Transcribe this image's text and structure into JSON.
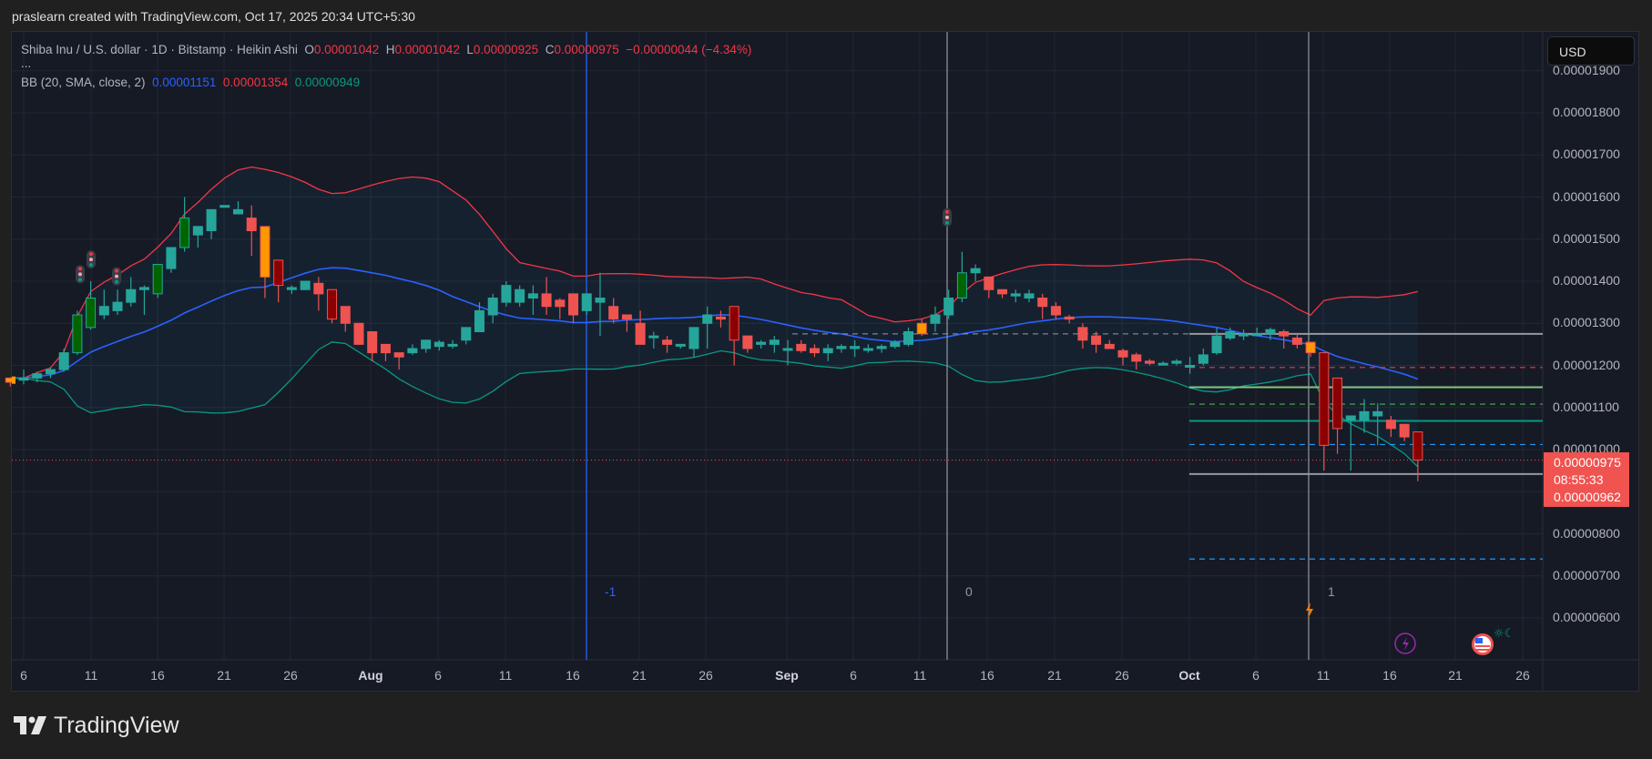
{
  "credit": "praslearn created with TradingView.com, Oct 17, 2025 20:34 UTC+5:30",
  "legend": {
    "symbol": "Shiba Inu / U.S. dollar · 1D · Bitstamp · Heikin Ashi",
    "o_label": "O",
    "o_value": "0.00001042",
    "h_label": "H",
    "h_value": "0.00001042",
    "l_label": "L",
    "l_value": "0.00000925",
    "c_label": "C",
    "c_value": "0.00000975",
    "change": "−0.00000044 (−4.34%)",
    "more": "...",
    "bb_label": "BB (20, SMA, close, 2)",
    "bb_basis": "0.00001151",
    "bb_upper": "0.00001354",
    "bb_lower": "0.00000949"
  },
  "currency_button": "USD",
  "price_axis": [
    "0.00001900",
    "0.00001800",
    "0.00001700",
    "0.00001600",
    "0.00001500",
    "0.00001400",
    "0.00001300",
    "0.00001200",
    "0.00001100",
    "0.00001000",
    "0.00000800",
    "0.00000700",
    "0.00000600"
  ],
  "last_price": {
    "price": "0.00000975",
    "countdown": "08:55:33",
    "low": "0.00000962"
  },
  "time_axis": [
    {
      "label": "6",
      "bold": false
    },
    {
      "label": "11",
      "bold": false
    },
    {
      "label": "16",
      "bold": false
    },
    {
      "label": "21",
      "bold": false
    },
    {
      "label": "26",
      "bold": false
    },
    {
      "label": "Aug",
      "bold": true
    },
    {
      "label": "6",
      "bold": false
    },
    {
      "label": "11",
      "bold": false
    },
    {
      "label": "16",
      "bold": false
    },
    {
      "label": "21",
      "bold": false
    },
    {
      "label": "26",
      "bold": false
    },
    {
      "label": "Sep",
      "bold": true
    },
    {
      "label": "6",
      "bold": false
    },
    {
      "label": "11",
      "bold": false
    },
    {
      "label": "16",
      "bold": false
    },
    {
      "label": "21",
      "bold": false
    },
    {
      "label": "26",
      "bold": false
    },
    {
      "label": "Oct",
      "bold": true
    },
    {
      "label": "6",
      "bold": false
    },
    {
      "label": "11",
      "bold": false
    },
    {
      "label": "16",
      "bold": false
    },
    {
      "label": "21",
      "bold": false
    },
    {
      "label": "26",
      "bold": false
    }
  ],
  "session_markers": [
    {
      "label": "-1",
      "color": "#2962ff"
    },
    {
      "label": "0",
      "color": "#9598a1"
    },
    {
      "label": "1",
      "color": "#9598a1"
    }
  ],
  "logo_text": "TradingView",
  "colors": {
    "up": "#26a69a",
    "up_strong": "#006400",
    "down": "#ef5350",
    "down_strong": "#8b0000",
    "neutral_orange": "#ff9800",
    "bb_upper": "#f23645",
    "bb_basis": "#2962ff",
    "bb_lower": "#089981",
    "background": "#161a25"
  },
  "chart_data": {
    "type": "candlestick",
    "title": "Shiba Inu / U.S. dollar · 1D · Bitstamp · Heikin Ashi",
    "xlabel": "",
    "ylabel": "USD",
    "ylim": [
      5.5e-06,
      1.95e-05
    ],
    "grid": true,
    "indicator": "Bollinger Bands (20, SMA, close, 2)",
    "x_start": "Jul 5 2025",
    "x_end": "Oct 17 2025",
    "last": {
      "open": 1.042e-05,
      "high": 1.042e-05,
      "low": 9.25e-06,
      "close": 9.75e-06,
      "change": -4.4e-07,
      "change_pct": -4.34
    },
    "bb_last": {
      "basis": 1.151e-05,
      "upper": 1.354e-05,
      "lower": 9.49e-06
    },
    "horizontal_levels": [
      1.275e-05,
      1.195e-05,
      1.148e-05,
      1.108e-05,
      1.068e-05,
      1.012e-05,
      9.42e-06,
      7.4e-06
    ],
    "candles_1e8": [
      [
        1160,
        1170,
        1150,
        1170
      ],
      [
        1165,
        1190,
        1155,
        1170
      ],
      [
        1170,
        1185,
        1160,
        1180
      ],
      [
        1180,
        1195,
        1170,
        1190
      ],
      [
        1190,
        1240,
        1185,
        1230
      ],
      [
        1230,
        1330,
        1225,
        1320
      ],
      [
        1290,
        1400,
        1285,
        1360
      ],
      [
        1320,
        1380,
        1310,
        1340
      ],
      [
        1330,
        1380,
        1320,
        1350
      ],
      [
        1350,
        1410,
        1340,
        1380
      ],
      [
        1380,
        1390,
        1320,
        1385
      ],
      [
        1370,
        1440,
        1360,
        1440
      ],
      [
        1430,
        1460,
        1420,
        1480
      ],
      [
        1480,
        1600,
        1470,
        1550
      ],
      [
        1510,
        1530,
        1480,
        1530
      ],
      [
        1520,
        1560,
        1500,
        1570
      ],
      [
        1580,
        1570,
        1580,
        1580
      ],
      [
        1560,
        1590,
        1570,
        1570
      ],
      [
        1550,
        1580,
        1460,
        1520
      ],
      [
        1530,
        1500,
        1360,
        1410
      ],
      [
        1450,
        1450,
        1350,
        1390
      ],
      [
        1380,
        1390,
        1370,
        1385
      ],
      [
        1380,
        1400,
        1380,
        1400
      ],
      [
        1395,
        1410,
        1330,
        1370
      ],
      [
        1380,
        1350,
        1300,
        1310
      ],
      [
        1340,
        1340,
        1280,
        1300
      ],
      [
        1300,
        1300,
        1250,
        1250
      ],
      [
        1280,
        1280,
        1210,
        1230
      ],
      [
        1250,
        1250,
        1210,
        1230
      ],
      [
        1230,
        1230,
        1190,
        1220
      ],
      [
        1230,
        1250,
        1225,
        1240
      ],
      [
        1240,
        1260,
        1230,
        1260
      ],
      [
        1245,
        1260,
        1235,
        1255
      ],
      [
        1250,
        1260,
        1240,
        1250
      ],
      [
        1260,
        1290,
        1250,
        1290
      ],
      [
        1280,
        1350,
        1280,
        1330
      ],
      [
        1320,
        1370,
        1300,
        1360
      ],
      [
        1350,
        1400,
        1340,
        1390
      ],
      [
        1350,
        1390,
        1340,
        1380
      ],
      [
        1360,
        1390,
        1320,
        1370
      ],
      [
        1370,
        1410,
        1320,
        1340
      ],
      [
        1355,
        1360,
        1310,
        1340
      ],
      [
        1370,
        1370,
        1300,
        1320
      ],
      [
        1330,
        1370,
        1320,
        1370
      ],
      [
        1350,
        1420,
        1270,
        1360
      ],
      [
        1340,
        1360,
        1300,
        1310
      ],
      [
        1320,
        1320,
        1280,
        1310
      ],
      [
        1300,
        1330,
        1250,
        1250
      ],
      [
        1270,
        1280,
        1240,
        1270
      ],
      [
        1260,
        1270,
        1230,
        1250
      ],
      [
        1250,
        1250,
        1240,
        1250
      ],
      [
        1240,
        1280,
        1220,
        1290
      ],
      [
        1300,
        1340,
        1240,
        1320
      ],
      [
        1315,
        1330,
        1290,
        1310
      ],
      [
        1340,
        1330,
        1200,
        1260
      ],
      [
        1270,
        1270,
        1230,
        1240
      ],
      [
        1250,
        1260,
        1240,
        1255
      ],
      [
        1250,
        1270,
        1230,
        1260
      ],
      [
        1240,
        1260,
        1200,
        1240
      ],
      [
        1250,
        1260,
        1230,
        1235
      ],
      [
        1240,
        1250,
        1220,
        1230
      ],
      [
        1230,
        1250,
        1210,
        1240
      ],
      [
        1240,
        1250,
        1230,
        1245
      ],
      [
        1240,
        1260,
        1220,
        1245
      ],
      [
        1240,
        1250,
        1230,
        1240
      ],
      [
        1240,
        1250,
        1230,
        1245
      ],
      [
        1245,
        1260,
        1240,
        1255
      ],
      [
        1250,
        1290,
        1245,
        1280
      ],
      [
        1275,
        1310,
        1270,
        1300
      ],
      [
        1300,
        1340,
        1280,
        1320
      ],
      [
        1320,
        1380,
        1310,
        1360
      ],
      [
        1360,
        1470,
        1350,
        1420
      ],
      [
        1420,
        1440,
        1400,
        1430
      ],
      [
        1410,
        1410,
        1360,
        1380
      ],
      [
        1380,
        1380,
        1360,
        1370
      ],
      [
        1365,
        1380,
        1350,
        1370
      ],
      [
        1360,
        1380,
        1350,
        1370
      ],
      [
        1360,
        1370,
        1310,
        1340
      ],
      [
        1340,
        1350,
        1310,
        1320
      ],
      [
        1315,
        1320,
        1300,
        1310
      ],
      [
        1290,
        1300,
        1240,
        1260
      ],
      [
        1270,
        1280,
        1230,
        1250
      ],
      [
        1250,
        1260,
        1240,
        1240
      ],
      [
        1235,
        1240,
        1200,
        1220
      ],
      [
        1225,
        1230,
        1190,
        1210
      ],
      [
        1210,
        1215,
        1200,
        1205
      ],
      [
        1205,
        1210,
        1200,
        1205
      ],
      [
        1205,
        1215,
        1200,
        1210
      ],
      [
        1200,
        1220,
        1180,
        1200
      ],
      [
        1205,
        1240,
        1200,
        1225
      ],
      [
        1230,
        1290,
        1225,
        1270
      ],
      [
        1265,
        1290,
        1260,
        1280
      ],
      [
        1270,
        1285,
        1260,
        1275
      ],
      [
        1275,
        1290,
        1270,
        1275
      ],
      [
        1275,
        1290,
        1260,
        1285
      ],
      [
        1280,
        1285,
        1240,
        1270
      ],
      [
        1265,
        1275,
        1240,
        1250
      ],
      [
        1255,
        1255,
        1220,
        1230
      ],
      [
        1230,
        1230,
        950,
        1010
      ],
      [
        1170,
        1170,
        990,
        1050
      ],
      [
        1070,
        1080,
        950,
        1080
      ],
      [
        1070,
        1120,
        1040,
        1090
      ],
      [
        1080,
        1110,
        1010,
        1090
      ],
      [
        1070,
        1080,
        1030,
        1050
      ],
      [
        1060,
        1060,
        1020,
        1030
      ],
      [
        1042,
        1042,
        925,
        975
      ]
    ]
  }
}
